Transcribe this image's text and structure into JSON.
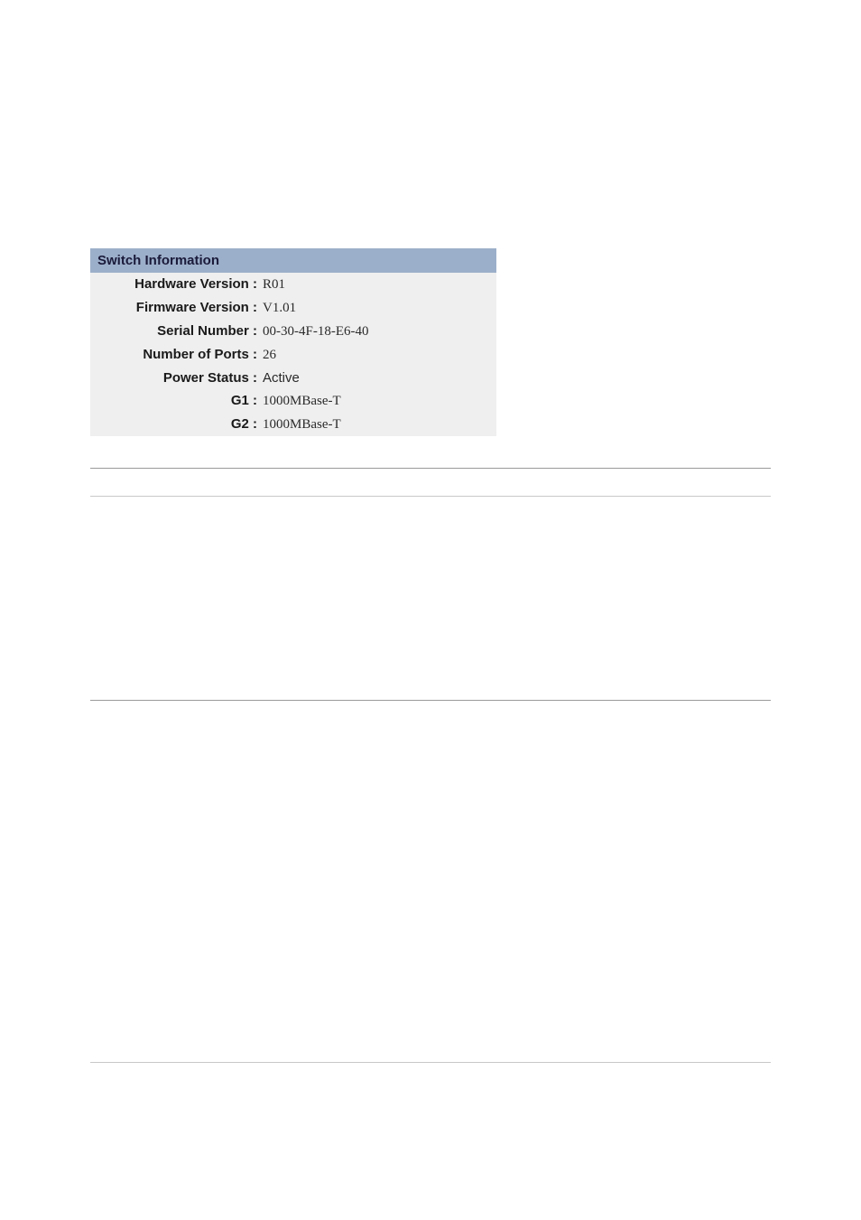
{
  "switchInfo": {
    "header": "Switch Information",
    "rows": [
      {
        "label": "Hardware Version :",
        "value": "R01"
      },
      {
        "label": "Firmware Version :",
        "value": "V1.01"
      },
      {
        "label": "Serial Number :",
        "value": "00-30-4F-18-E6-40"
      },
      {
        "label": "Number of Ports :",
        "value": "26"
      },
      {
        "label": "Power Status :",
        "value": "Active",
        "sans": true
      },
      {
        "label": "G1 :",
        "value": "1000MBase-T"
      },
      {
        "label": "G2 :",
        "value": "1000MBase-T"
      }
    ]
  },
  "colors": {
    "headerBg": "#9cafca",
    "panelBg": "#efefef",
    "hrColor": "#9a9a9a",
    "hrLightColor": "#c8c8c8"
  }
}
